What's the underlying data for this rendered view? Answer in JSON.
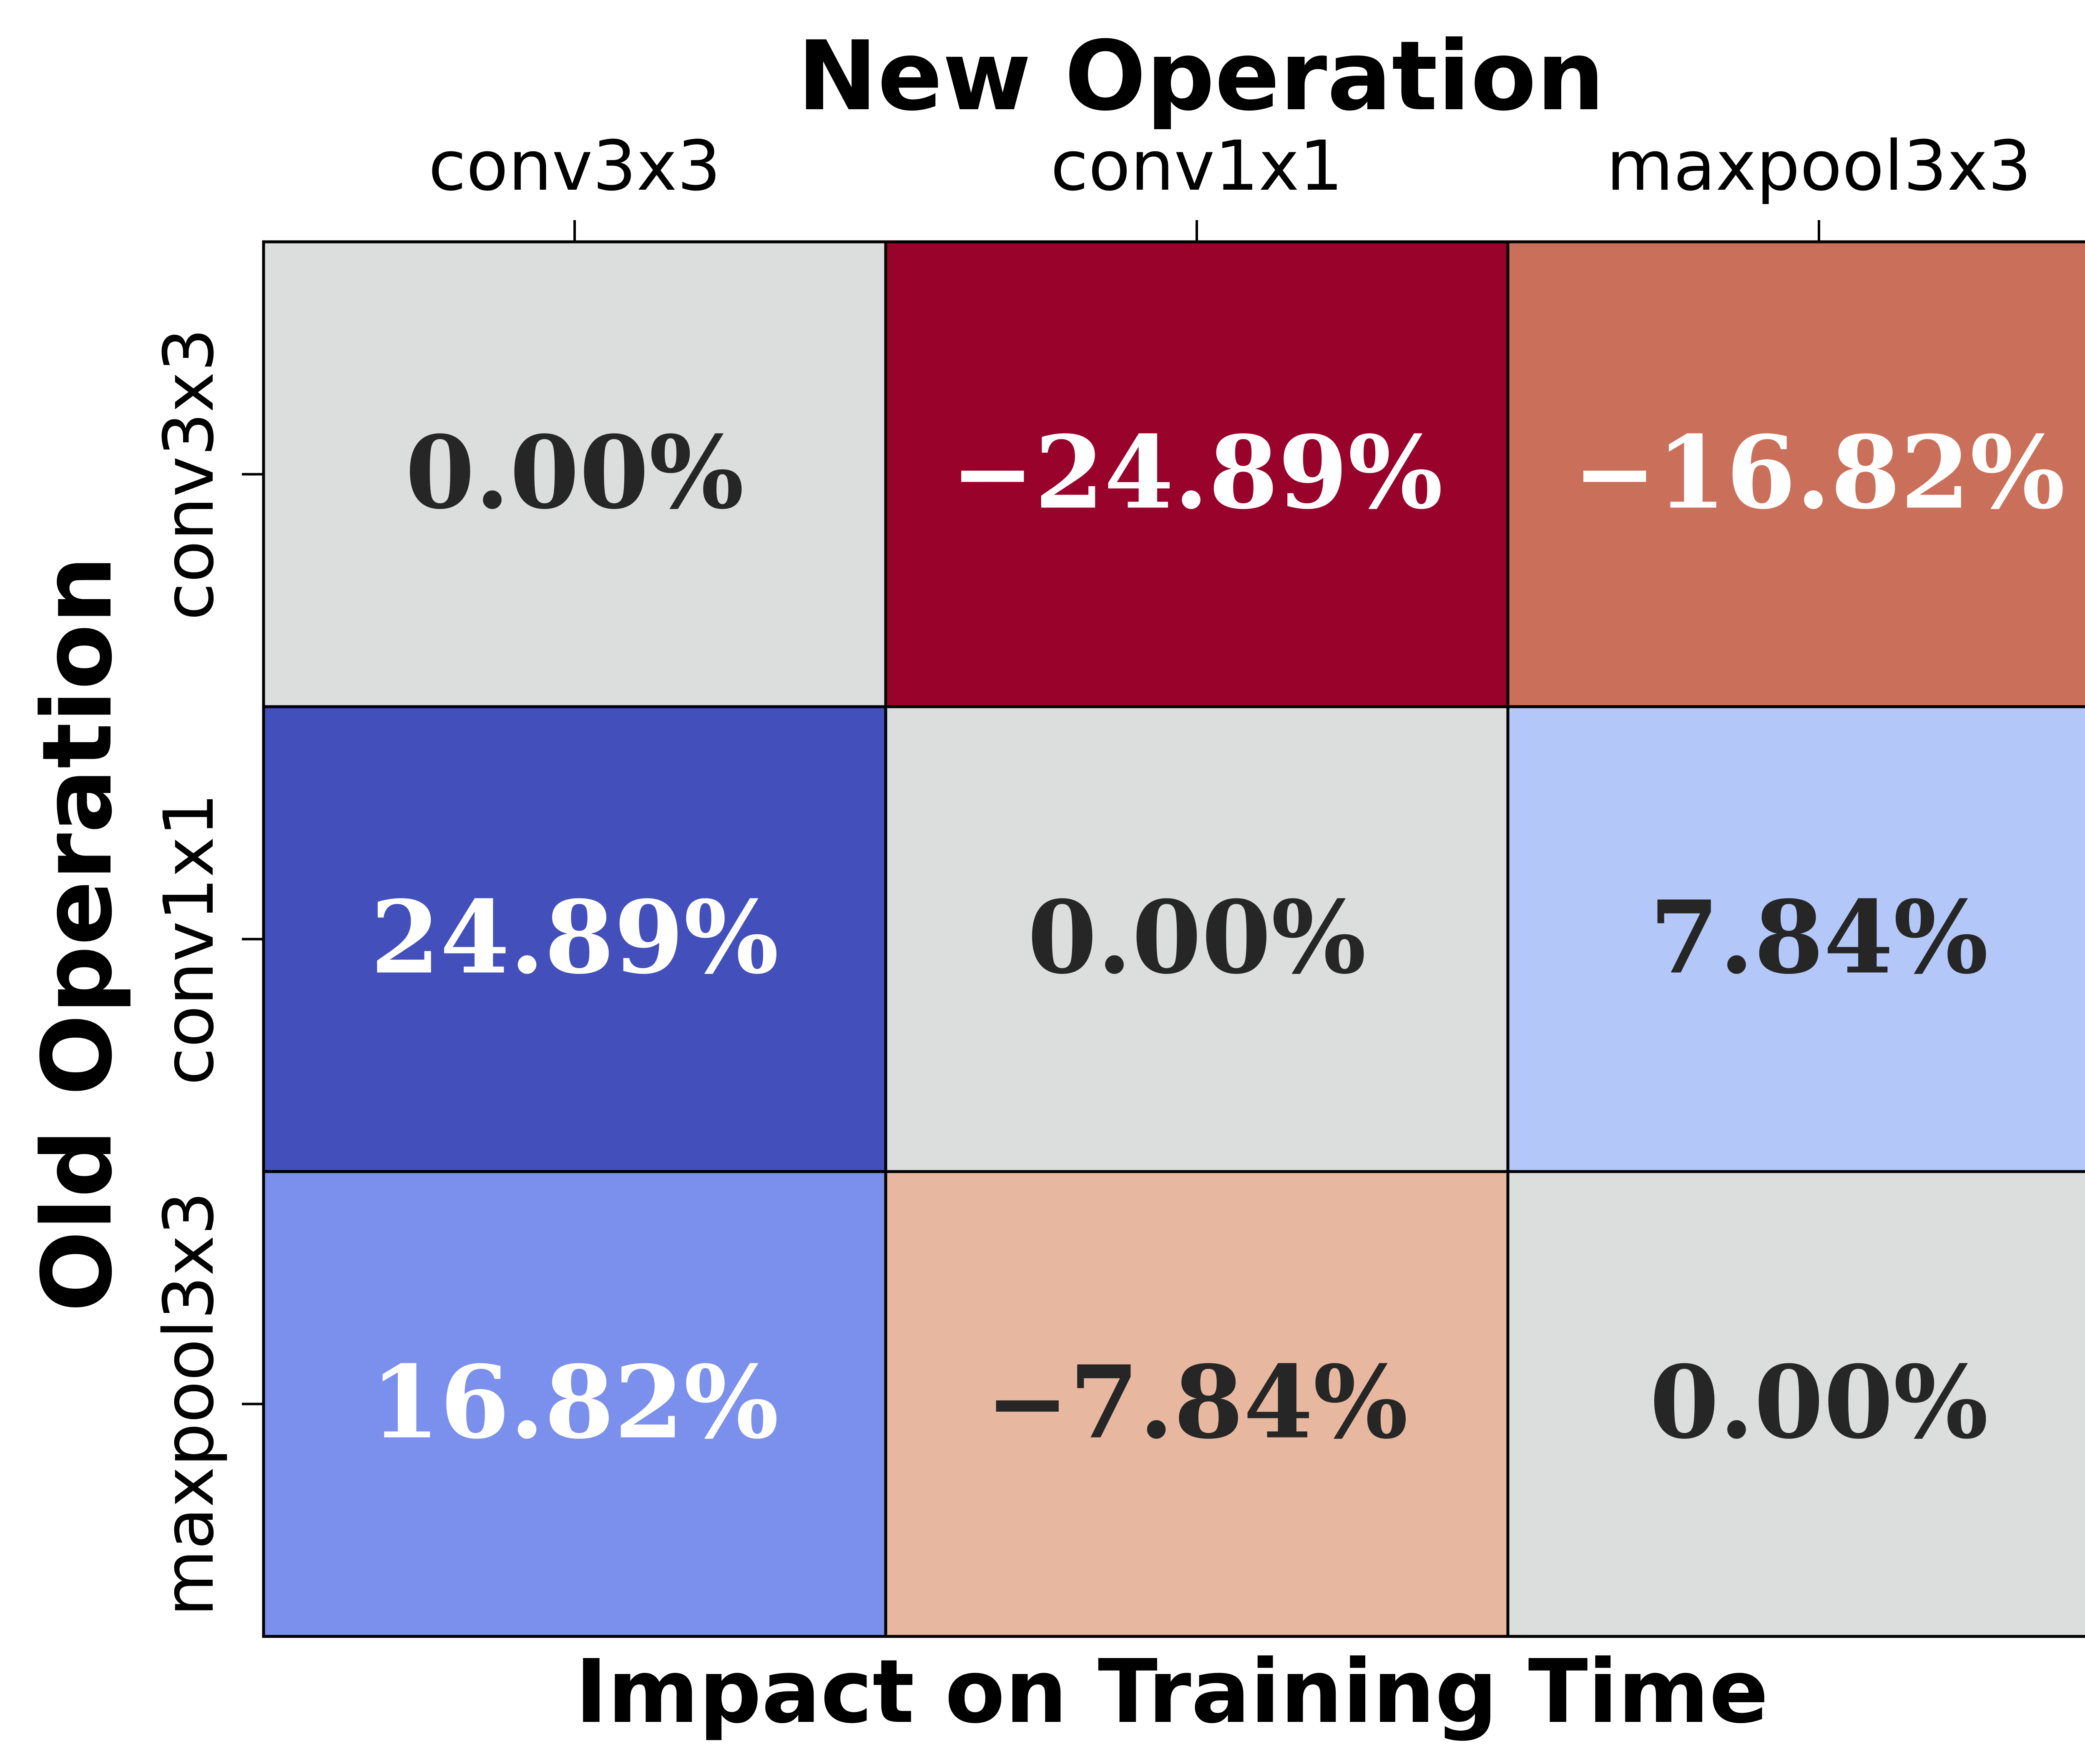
{
  "chart_data": {
    "type": "heatmap",
    "title": "New Operation",
    "xlabel": "Impact on Training Time",
    "ylabel": "Old Operation",
    "x_categories": [
      "conv3x3",
      "conv1x1",
      "maxpool3x3"
    ],
    "y_categories": [
      "conv3x3",
      "conv1x1",
      "maxpool3x3"
    ],
    "values": [
      [
        0.0,
        -24.89,
        -16.82
      ],
      [
        24.89,
        0.0,
        7.84
      ],
      [
        16.82,
        -7.84,
        0.0
      ]
    ],
    "value_labels": [
      [
        "0.00%",
        "−24.89%",
        "−16.82%"
      ],
      [
        "24.89%",
        "0.00%",
        "7.84%"
      ],
      [
        "16.82%",
        "−7.84%",
        "0.00%"
      ]
    ],
    "cell_colors": [
      [
        "#dcdddd",
        "#98022b",
        "#ca705a"
      ],
      [
        "#434fbb",
        "#dcdddd",
        "#b3c7f8"
      ],
      [
        "#7b8fec",
        "#e7b89f",
        "#dcdddd"
      ]
    ],
    "label_colors": [
      [
        "#262626",
        "#ffffff",
        "#ffffff"
      ],
      [
        "#ffffff",
        "#262626",
        "#262626"
      ],
      [
        "#ffffff",
        "#262626",
        "#262626"
      ]
    ],
    "colormap": "coolwarm (reversed)",
    "x_axis_position": "top",
    "grid": false,
    "legend": "none"
  }
}
